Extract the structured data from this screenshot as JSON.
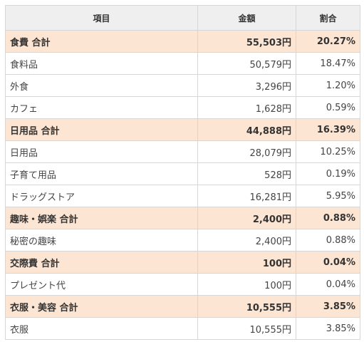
{
  "header": {
    "item_label": "項目",
    "amount_label": "金額",
    "ratio_label": "割合"
  },
  "rows": [
    {
      "type": "subtotal",
      "name": "食費 合計",
      "amount": "55,503円",
      "ratio": "20.27%"
    },
    {
      "type": "item",
      "name": "食料品",
      "amount": "50,579円",
      "ratio": "18.47%"
    },
    {
      "type": "item",
      "name": "外食",
      "amount": "3,296円",
      "ratio": "1.20%"
    },
    {
      "type": "item",
      "name": "カフェ",
      "amount": "1,628円",
      "ratio": "0.59%"
    },
    {
      "type": "subtotal",
      "name": "日用品 合計",
      "amount": "44,888円",
      "ratio": "16.39%"
    },
    {
      "type": "item",
      "name": "日用品",
      "amount": "28,079円",
      "ratio": "10.25%"
    },
    {
      "type": "item",
      "name": "子育て用品",
      "amount": "528円",
      "ratio": "0.19%"
    },
    {
      "type": "item",
      "name": "ドラッグストア",
      "amount": "16,281円",
      "ratio": "5.95%"
    },
    {
      "type": "subtotal",
      "name": "趣味・娯楽 合計",
      "amount": "2,400円",
      "ratio": "0.88%"
    },
    {
      "type": "item",
      "name": "秘密の趣味",
      "amount": "2,400円",
      "ratio": "0.88%"
    },
    {
      "type": "subtotal",
      "name": "交際費 合計",
      "amount": "100円",
      "ratio": "0.04%"
    },
    {
      "type": "item",
      "name": "プレゼント代",
      "amount": "100円",
      "ratio": "0.04%"
    },
    {
      "type": "subtotal",
      "name": "衣服・美容 合計",
      "amount": "10,555円",
      "ratio": "3.85%"
    },
    {
      "type": "item",
      "name": "衣服",
      "amount": "10,555円",
      "ratio": "3.85%"
    }
  ],
  "colors": {
    "subtotal_bg": "#fde5d3",
    "header_bg": "#efefef",
    "border": "#d6d6d6"
  }
}
